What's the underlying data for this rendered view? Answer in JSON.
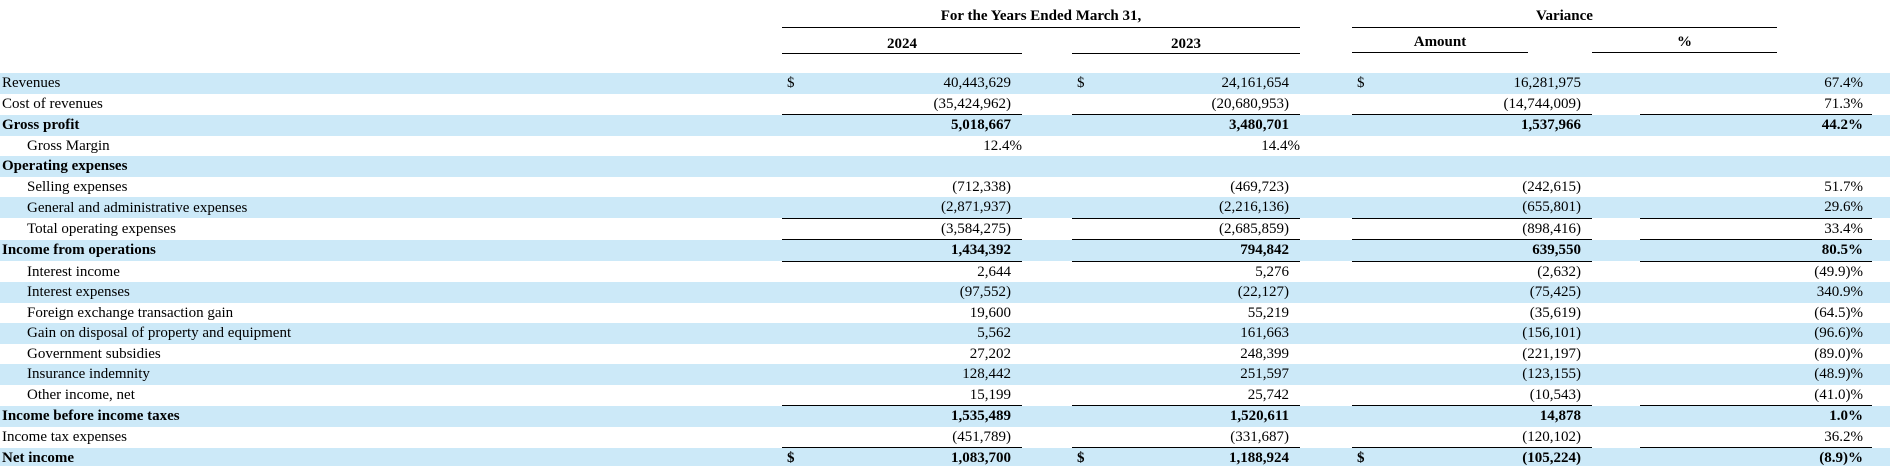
{
  "colors": {
    "stripe": "#cce9f8",
    "rule": "#000000",
    "text": "#000000"
  },
  "header": {
    "years_group": "For the Years Ended March 31,",
    "variance_group": "Variance",
    "year_2024": "2024",
    "year_2023": "2023",
    "amount": "Amount",
    "percent": "%"
  },
  "rows": [
    {
      "label": "Revenues",
      "bold": false,
      "indent": false,
      "shaded": true,
      "rule": false,
      "cur_2024": "$",
      "val_2024": "40,443,629",
      "cur_2023": "$",
      "val_2023": "24,161,654",
      "cur_var": "$",
      "var_amount": "16,281,975",
      "var_pct": "67.4%"
    },
    {
      "label": "Cost of revenues",
      "bold": false,
      "indent": false,
      "shaded": false,
      "rule": true,
      "cur_2024": "",
      "val_2024": "(35,424,962)",
      "cur_2023": "",
      "val_2023": "(20,680,953)",
      "cur_var": "",
      "var_amount": "(14,744,009)",
      "var_pct": "71.3%"
    },
    {
      "label": "Gross profit",
      "bold": true,
      "indent": false,
      "shaded": true,
      "rule": false,
      "cur_2024": "",
      "val_2024": "5,018,667",
      "cur_2023": "",
      "val_2023": "3,480,701",
      "cur_var": "",
      "var_amount": "1,537,966",
      "var_pct": "44.2%"
    },
    {
      "label": "Gross Margin",
      "bold": false,
      "indent": true,
      "shaded": false,
      "rule": false,
      "cur_2024": "",
      "val_2024": "12.4%",
      "cur_2023": "",
      "val_2023": "14.4%",
      "cur_var": "",
      "var_amount": "",
      "var_pct": ""
    },
    {
      "label": "Operating expenses",
      "bold": true,
      "indent": false,
      "shaded": true,
      "rule": false,
      "cur_2024": "",
      "val_2024": "",
      "cur_2023": "",
      "val_2023": "",
      "cur_var": "",
      "var_amount": "",
      "var_pct": ""
    },
    {
      "label": "Selling expenses",
      "bold": false,
      "indent": true,
      "shaded": false,
      "rule": false,
      "cur_2024": "",
      "val_2024": "(712,338)",
      "cur_2023": "",
      "val_2023": "(469,723)",
      "cur_var": "",
      "var_amount": "(242,615)",
      "var_pct": "51.7%"
    },
    {
      "label": "General and administrative expenses",
      "bold": false,
      "indent": true,
      "shaded": true,
      "rule": true,
      "cur_2024": "",
      "val_2024": "(2,871,937)",
      "cur_2023": "",
      "val_2023": "(2,216,136)",
      "cur_var": "",
      "var_amount": "(655,801)",
      "var_pct": "29.6%"
    },
    {
      "label": "Total operating expenses",
      "bold": false,
      "indent": true,
      "shaded": false,
      "rule": true,
      "cur_2024": "",
      "val_2024": "(3,584,275)",
      "cur_2023": "",
      "val_2023": "(2,685,859)",
      "cur_var": "",
      "var_amount": "(898,416)",
      "var_pct": "33.4%"
    },
    {
      "label": "Income from operations",
      "bold": true,
      "indent": false,
      "shaded": true,
      "rule": true,
      "cur_2024": "",
      "val_2024": "1,434,392",
      "cur_2023": "",
      "val_2023": "794,842",
      "cur_var": "",
      "var_amount": "639,550",
      "var_pct": "80.5%"
    },
    {
      "label": "Interest income",
      "bold": false,
      "indent": true,
      "shaded": false,
      "rule": false,
      "cur_2024": "",
      "val_2024": "2,644",
      "cur_2023": "",
      "val_2023": "5,276",
      "cur_var": "",
      "var_amount": "(2,632)",
      "var_pct": "(49.9)%"
    },
    {
      "label": "Interest expenses",
      "bold": false,
      "indent": true,
      "shaded": true,
      "rule": false,
      "cur_2024": "",
      "val_2024": "(97,552)",
      "cur_2023": "",
      "val_2023": "(22,127)",
      "cur_var": "",
      "var_amount": "(75,425)",
      "var_pct": "340.9%"
    },
    {
      "label": "Foreign exchange transaction gain",
      "bold": false,
      "indent": true,
      "shaded": false,
      "rule": false,
      "cur_2024": "",
      "val_2024": "19,600",
      "cur_2023": "",
      "val_2023": "55,219",
      "cur_var": "",
      "var_amount": "(35,619)",
      "var_pct": "(64.5)%"
    },
    {
      "label": "Gain on disposal of property and equipment",
      "bold": false,
      "indent": true,
      "shaded": true,
      "rule": false,
      "cur_2024": "",
      "val_2024": "5,562",
      "cur_2023": "",
      "val_2023": "161,663",
      "cur_var": "",
      "var_amount": "(156,101)",
      "var_pct": "(96.6)%"
    },
    {
      "label": "Government subsidies",
      "bold": false,
      "indent": true,
      "shaded": false,
      "rule": false,
      "cur_2024": "",
      "val_2024": "27,202",
      "cur_2023": "",
      "val_2023": "248,399",
      "cur_var": "",
      "var_amount": "(221,197)",
      "var_pct": "(89.0)%"
    },
    {
      "label": "Insurance indemnity",
      "bold": false,
      "indent": true,
      "shaded": true,
      "rule": false,
      "cur_2024": "",
      "val_2024": "128,442",
      "cur_2023": "",
      "val_2023": "251,597",
      "cur_var": "",
      "var_amount": "(123,155)",
      "var_pct": "(48.9)%"
    },
    {
      "label": "Other income, net",
      "bold": false,
      "indent": true,
      "shaded": false,
      "rule": true,
      "cur_2024": "",
      "val_2024": "15,199",
      "cur_2023": "",
      "val_2023": "25,742",
      "cur_var": "",
      "var_amount": "(10,543)",
      "var_pct": "(41.0)%"
    },
    {
      "label": "Income before income taxes",
      "bold": true,
      "indent": false,
      "shaded": true,
      "rule": false,
      "cur_2024": "",
      "val_2024": "1,535,489",
      "cur_2023": "",
      "val_2023": "1,520,611",
      "cur_var": "",
      "var_amount": "14,878",
      "var_pct": "1.0%"
    },
    {
      "label": "Income tax expenses",
      "bold": false,
      "indent": false,
      "shaded": false,
      "rule": true,
      "cur_2024": "",
      "val_2024": "(451,789)",
      "cur_2023": "",
      "val_2023": "(331,687)",
      "cur_var": "",
      "var_amount": "(120,102)",
      "var_pct": "36.2%"
    },
    {
      "label": "Net income",
      "bold": true,
      "indent": false,
      "shaded": true,
      "rule": true,
      "cur_2024": "$",
      "val_2024": "1,083,700",
      "cur_2023": "$",
      "val_2023": "1,188,924",
      "cur_var": "$",
      "var_amount": "(105,224)",
      "var_pct": "(8.9)%"
    }
  ]
}
